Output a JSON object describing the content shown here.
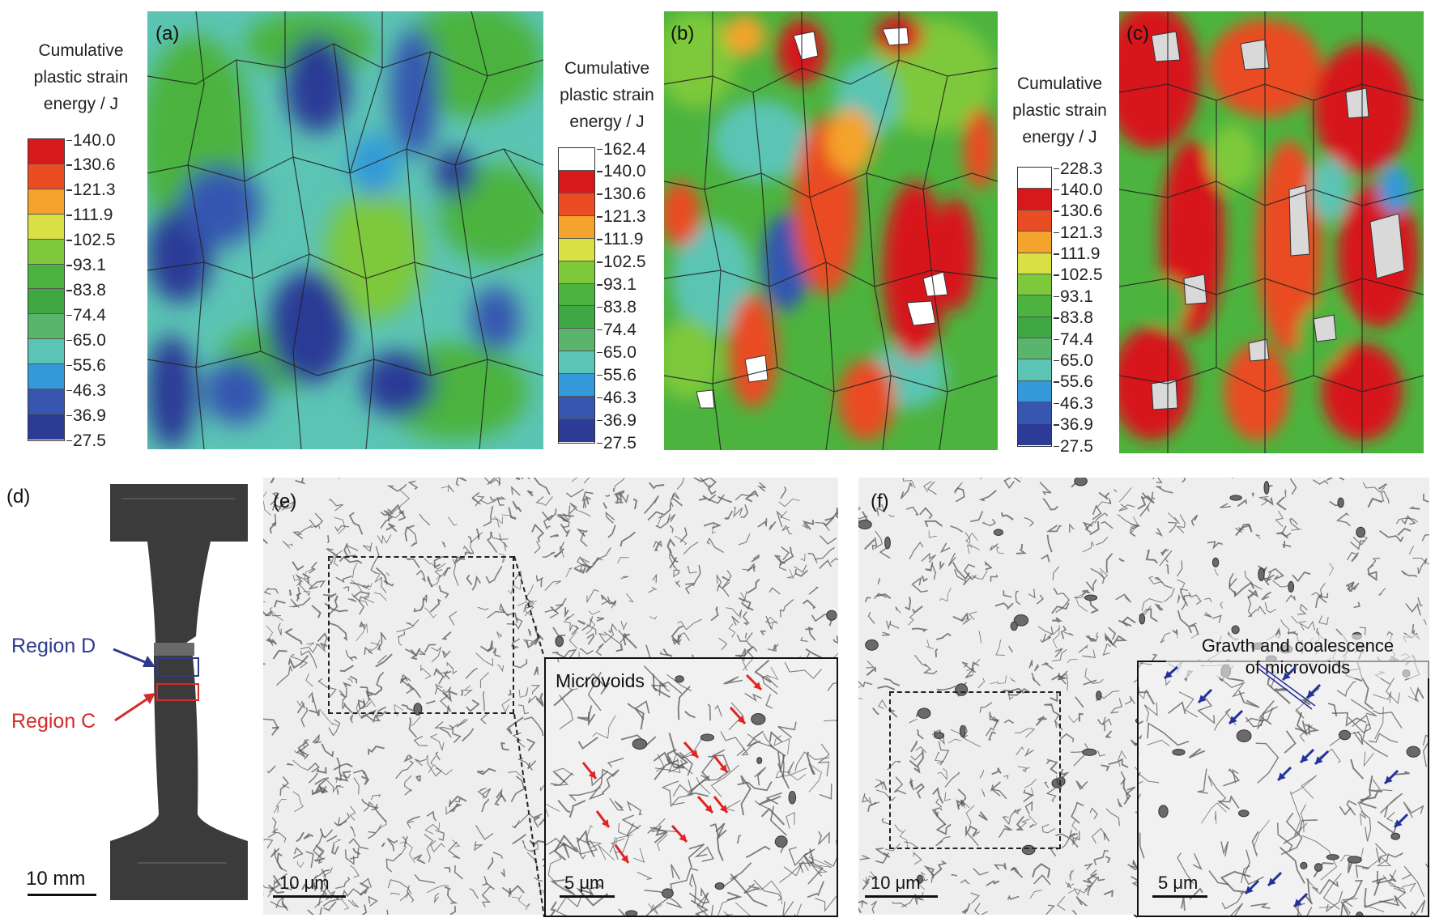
{
  "panels": {
    "a": {
      "label": "(a)"
    },
    "b": {
      "label": "(b)"
    },
    "c": {
      "label": "(c)"
    },
    "d": {
      "label": "(d)"
    },
    "e": {
      "label": "(e)"
    },
    "f": {
      "label": "(f)"
    }
  },
  "colorbar_title": [
    "Cumulative",
    "plastic strain",
    "energy / J"
  ],
  "colorbars": {
    "a": {
      "ticks": [
        "140.0",
        "130.6",
        "121.3",
        "111.9",
        "102.5",
        "93.1",
        "83.8",
        "74.4",
        "65.0",
        "55.6",
        "46.3",
        "36.9",
        "27.5"
      ]
    },
    "b": {
      "ticks": [
        "162.4",
        "140.0",
        "130.6",
        "121.3",
        "111.9",
        "102.5",
        "93.1",
        "83.8",
        "74.4",
        "65.0",
        "55.6",
        "46.3",
        "36.9",
        "27.5"
      ]
    },
    "c": {
      "ticks": [
        "228.3",
        "140.0",
        "130.6",
        "121.3",
        "111.9",
        "102.5",
        "93.1",
        "83.8",
        "74.4",
        "65.0",
        "55.6",
        "46.3",
        "36.9",
        "27.5"
      ]
    }
  },
  "colors": {
    "scale": [
      "#d7191c",
      "#ea4c24",
      "#f4a32c",
      "#d8e043",
      "#7dc93b",
      "#4cb33e",
      "#3fa842",
      "#5ab56c",
      "#5cc4b4",
      "#3399d9",
      "#3656b0",
      "#2b3b96"
    ],
    "overflow": "#ffffff",
    "region_d": "#2e3a8c",
    "region_c": "#d52b2b",
    "arrow_red": "#e32222",
    "arrow_blue": "#25319a"
  },
  "specimen": {
    "region_d": "Region D",
    "region_c": "Region C",
    "scale": "10 mm"
  },
  "micrographs": {
    "e": {
      "scale": "10 μm",
      "inset_label": "Microvoids",
      "inset_scale": "5 μm"
    },
    "f": {
      "scale": "10 μm",
      "inset_label_1": "Gravth and coalescence",
      "inset_label_2": "of microvoids",
      "inset_scale": "5 μm"
    }
  }
}
